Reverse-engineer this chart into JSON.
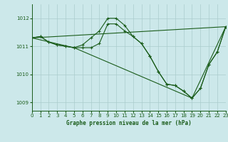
{
  "title": "Graphe pression niveau de la mer (hPa)",
  "bg_color": "#cce8ea",
  "grid_color": "#aacccc",
  "line_color": "#1a5c1a",
  "marker_color": "#1a5c1a",
  "xlim": [
    0,
    23
  ],
  "ylim": [
    1008.7,
    1012.5
  ],
  "yticks": [
    1009,
    1010,
    1011,
    1012
  ],
  "xticks": [
    0,
    1,
    2,
    3,
    4,
    5,
    6,
    7,
    8,
    9,
    10,
    11,
    12,
    13,
    14,
    15,
    16,
    17,
    18,
    19,
    20,
    21,
    22,
    23
  ],
  "series": [
    {
      "x": [
        0,
        1,
        2,
        3,
        4,
        5,
        6,
        7,
        8,
        9,
        10,
        11,
        12,
        13,
        14,
        15,
        16,
        17,
        18,
        19,
        20,
        21,
        22,
        23
      ],
      "y": [
        1011.3,
        1011.35,
        1011.15,
        1011.05,
        1011.0,
        1010.95,
        1011.05,
        1011.3,
        1011.55,
        1012.0,
        1012.0,
        1011.75,
        1011.35,
        1011.1,
        1010.65,
        1010.1,
        1009.65,
        1009.6,
        1009.4,
        1009.15,
        1009.5,
        1010.35,
        1010.8,
        1011.7
      ],
      "has_markers": true
    },
    {
      "x": [
        0,
        1,
        2,
        3,
        4,
        5,
        6,
        7,
        8,
        9,
        10,
        11,
        12,
        13,
        14,
        15,
        16,
        17,
        18,
        19,
        20,
        21,
        22,
        23
      ],
      "y": [
        1011.3,
        1011.35,
        1011.15,
        1011.05,
        1011.0,
        1010.95,
        1010.95,
        1010.95,
        1011.1,
        1011.8,
        1011.8,
        1011.55,
        1011.35,
        1011.1,
        1010.65,
        1010.1,
        1009.65,
        1009.6,
        1009.4,
        1009.15,
        1009.5,
        1010.35,
        1010.8,
        1011.7
      ],
      "has_markers": true
    },
    {
      "x": [
        0,
        23
      ],
      "y": [
        1011.3,
        1011.7
      ],
      "has_markers": false
    },
    {
      "x": [
        0,
        5,
        19,
        23
      ],
      "y": [
        1011.3,
        1010.95,
        1009.15,
        1011.7
      ],
      "has_markers": false
    }
  ]
}
